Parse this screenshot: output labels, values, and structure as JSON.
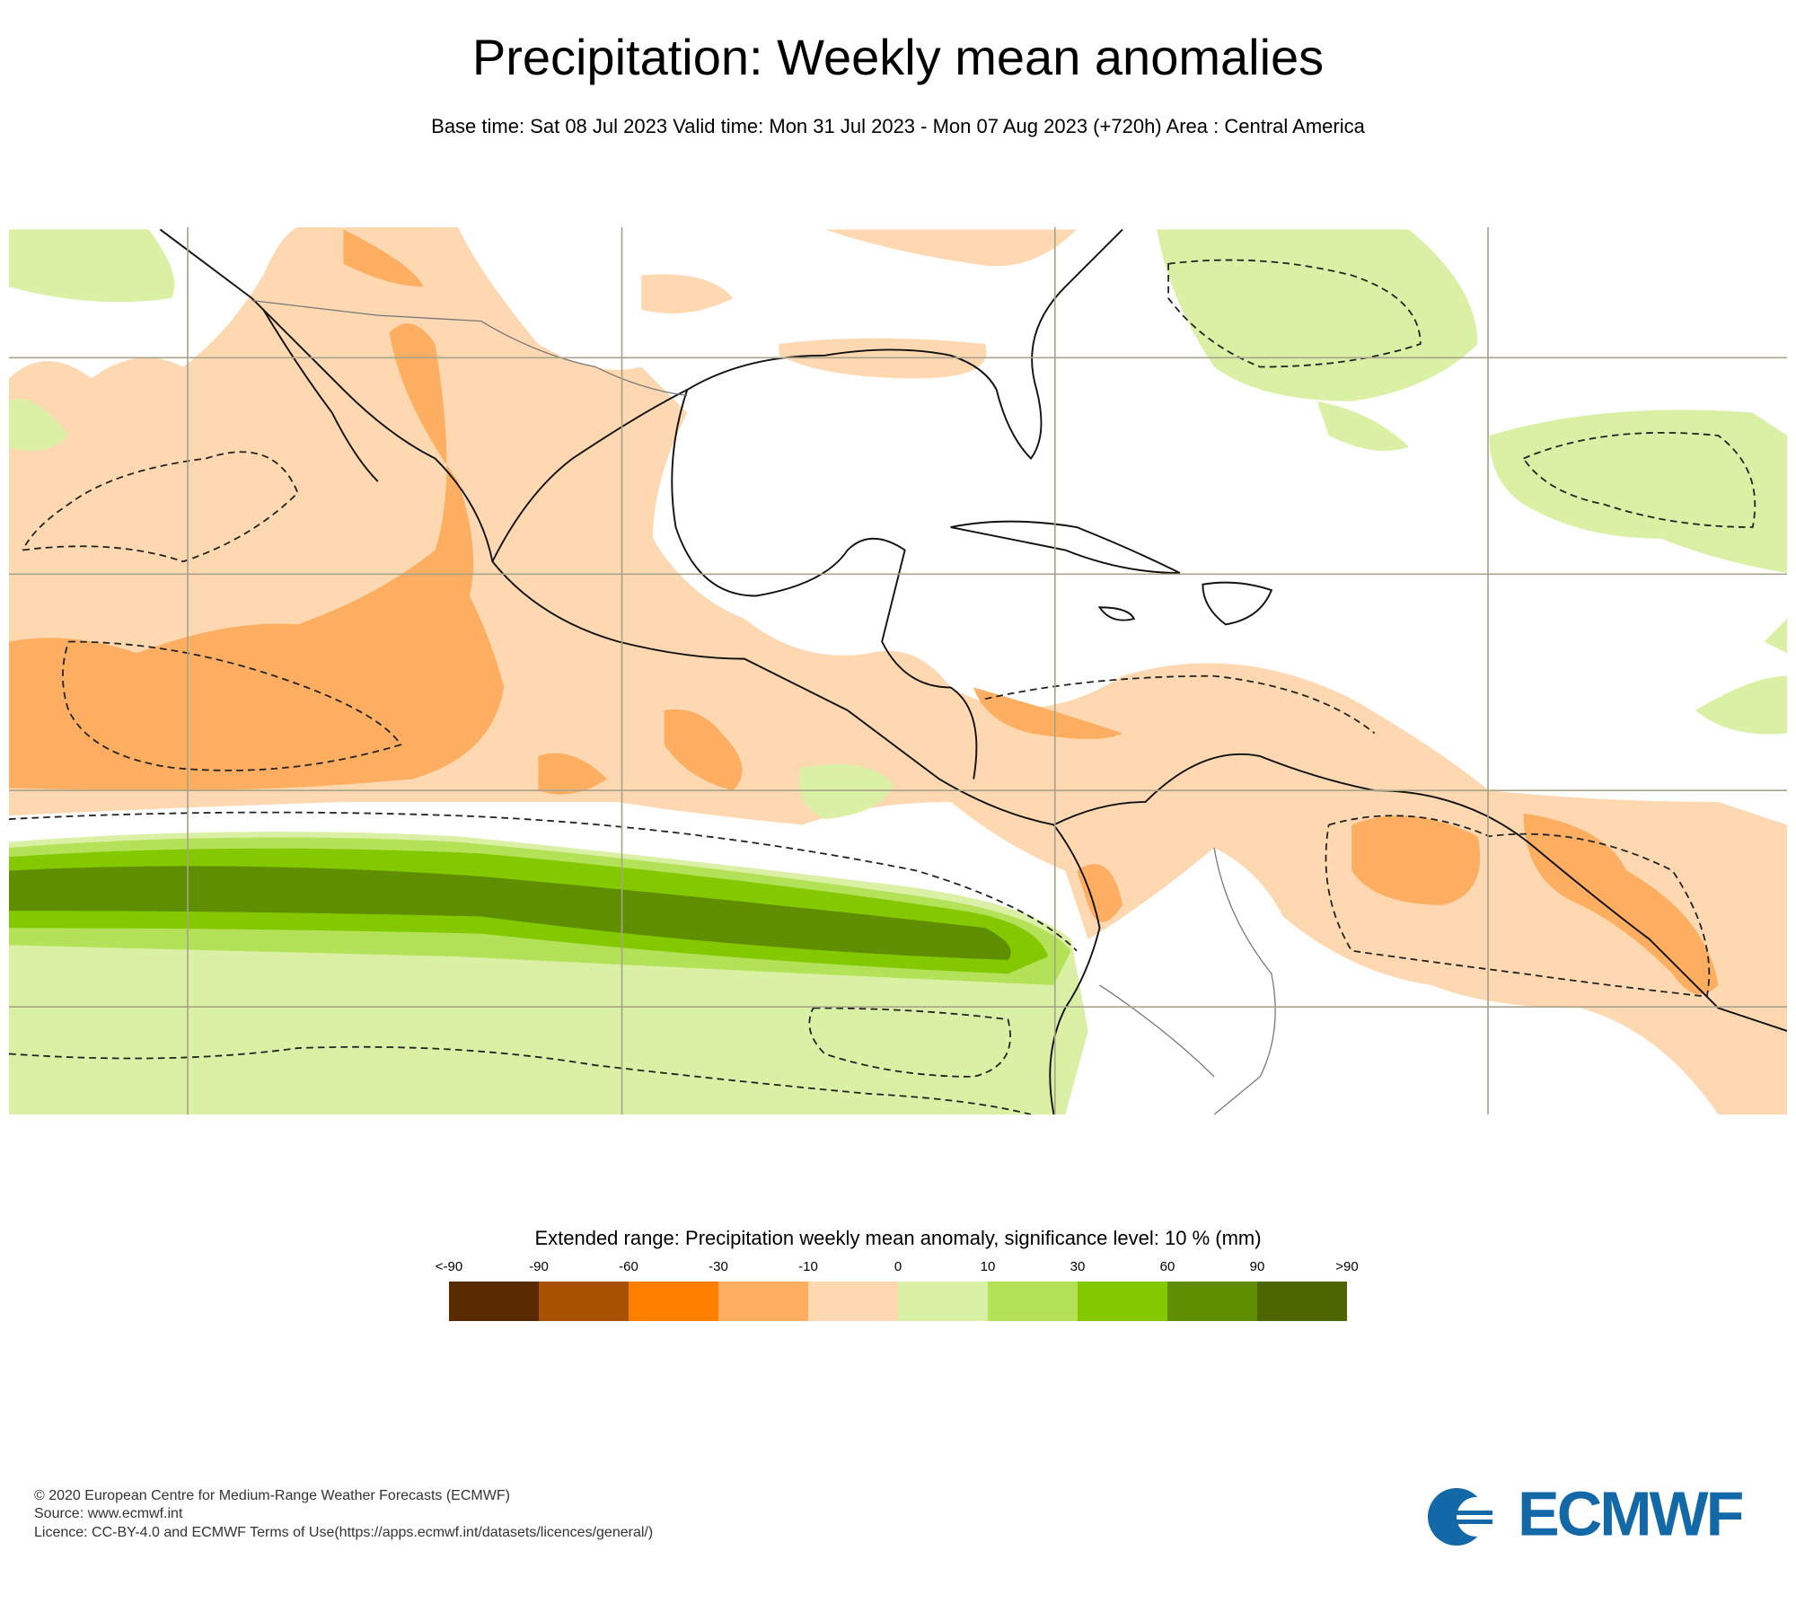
{
  "header": {
    "title": "Precipitation: Weekly mean anomalies",
    "subtitle": "Base time: Sat 08 Jul 2023 Valid time: Mon 31 Jul 2023 - Mon 07 Aug 2023 (+720h) Area : Central America"
  },
  "legend": {
    "title": "Extended range: Precipitation weekly mean anomaly, significance level: 10 % (mm)",
    "labels": [
      "<-90",
      "-90",
      "-60",
      "-30",
      "-10",
      "0",
      "10",
      "30",
      "60",
      "90",
      ">90"
    ],
    "colors": [
      "#5a2a00",
      "#a85200",
      "#ff7f00",
      "#fdae61",
      "#fdd8b0",
      "#daf0a5",
      "#b3e157",
      "#84c800",
      "#5f8f00",
      "#4d6600"
    ]
  },
  "footer": {
    "lines": [
      "© 2020 European Centre for Medium-Range Weather Forecasts (ECMWF)",
      "Source: www.ecmwf.int",
      "Licence: CC-BY-4.0 and ECMWF Terms of Use(https://apps.ecmwf.int/datasets/licences/general/)"
    ],
    "logo": "ECMWF"
  }
}
